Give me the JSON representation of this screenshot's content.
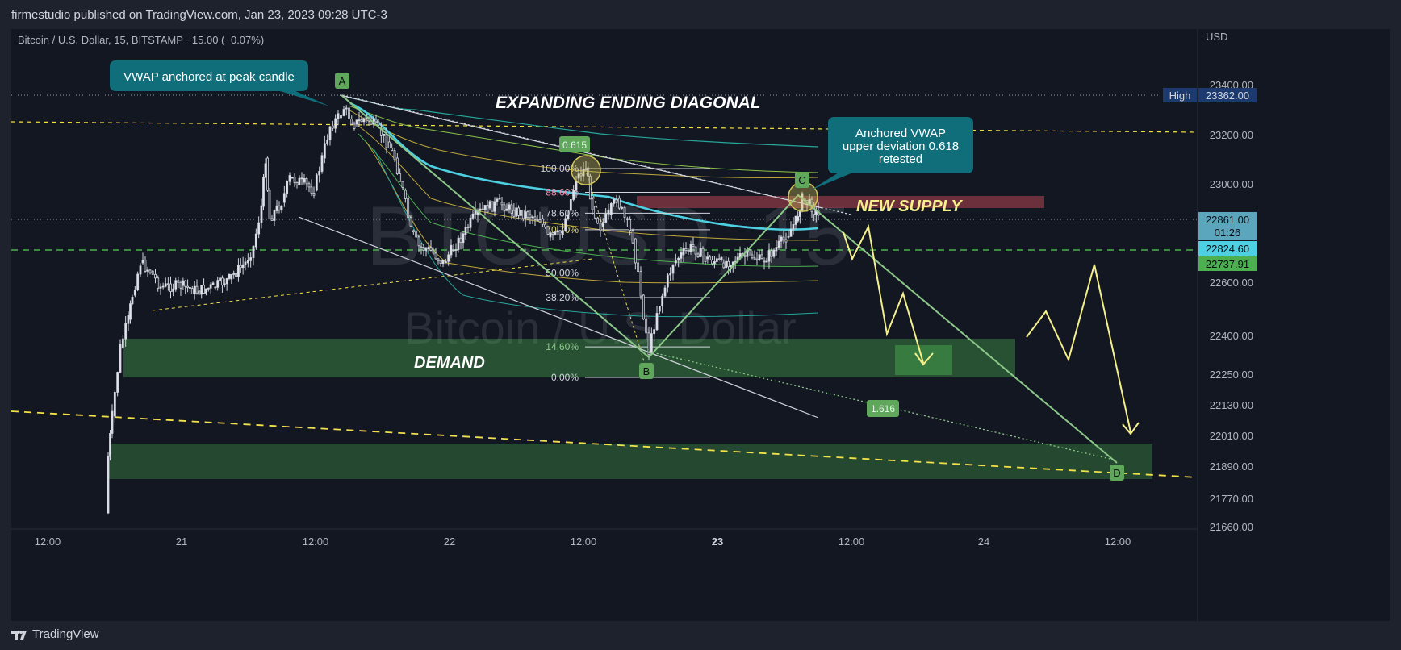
{
  "header": {
    "publisher_line": "firmestudio published on TradingView.com, Jan 23, 2023 09:28 UTC-3",
    "symbol_line": "Bitcoin / U.S. Dollar, 15, BITSTAMP  −15.00 (−0.07%)"
  },
  "watermark": {
    "symbol": "BTCUSD, 15",
    "name": "Bitcoin / U.S. Dollar"
  },
  "footer": {
    "brand": "TradingView",
    "logo_icon": "tradingview-logo-icon"
  },
  "colors": {
    "background": "#131722",
    "frame": "#1e222d",
    "grid_text": "#b2b5be",
    "vwap": "#4dd0e1",
    "zone_green": "#4caf50",
    "supply": "#8b3a46",
    "yellow_dashed": "#f3e14b",
    "green_dashed": "#4caf50",
    "projection": "#f6f08c",
    "wave_line": "#8bc888",
    "callout": "#0f6e7a"
  },
  "chart_data": {
    "type": "candlestick",
    "instrument": "Bitcoin / U.S. Dollar, 15, BITSTAMP",
    "y_axis": {
      "unit": "USD",
      "ticks": [
        "23400.00",
        "23200.00",
        "23000.00",
        "22600.00",
        "22400.00",
        "22250.00",
        "22130.00",
        "22010.00",
        "21890.00",
        "21770.00",
        "21660.00"
      ],
      "tick_values": [
        23400,
        23200,
        23000,
        22600,
        22400,
        22250,
        22130,
        22010,
        21890,
        21770,
        21660
      ]
    },
    "x_axis": {
      "ticks": [
        "12:00",
        "21",
        "12:00",
        "22",
        "12:00",
        "23",
        "12:00",
        "24",
        "12:00"
      ],
      "bold_tick": "23"
    },
    "price_labels": [
      {
        "text": "High",
        "kind": "tag"
      },
      {
        "text": "23362.00",
        "price": 23362,
        "kind": "high"
      },
      {
        "text": "22861.00",
        "price": 22861,
        "kind": "last"
      },
      {
        "text": "01:26",
        "kind": "countdown"
      },
      {
        "text": "22824.60",
        "price": 22824.6,
        "kind": "green-line"
      },
      {
        "text": "22737.91",
        "price": 22737.91,
        "kind": "vwap"
      }
    ],
    "fibonacci": {
      "levels": [
        "100.00%",
        "88.60%",
        "78.60%",
        "70.70%",
        "50.00%",
        "38.20%",
        "14.60%",
        "0.00%"
      ],
      "ratios": [
        1.0,
        0.886,
        0.786,
        0.707,
        0.5,
        0.382,
        0.146,
        0.0
      ]
    },
    "wave_points": [
      "A",
      "B",
      "C",
      "D"
    ],
    "annotations": {
      "vwap_callout": "VWAP anchored at peak candle",
      "diagonal_title": "EXPANDING ENDING DIAGONAL",
      "upper_dev_callout_1": "Anchored VWAP",
      "upper_dev_callout_2": "upper deviation 0.618",
      "upper_dev_callout_3": "retested",
      "new_supply": "NEW SUPPLY",
      "demand": "DEMAND",
      "ext_1": "0.615",
      "ext_2": "1.616"
    }
  }
}
